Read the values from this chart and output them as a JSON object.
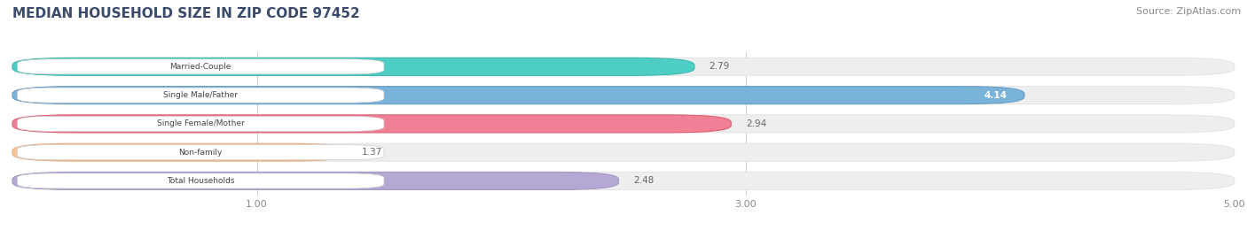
{
  "title": "MEDIAN HOUSEHOLD SIZE IN ZIP CODE 97452",
  "source": "Source: ZipAtlas.com",
  "categories": [
    "Married-Couple",
    "Single Male/Father",
    "Single Female/Mother",
    "Non-family",
    "Total Households"
  ],
  "values": [
    2.79,
    4.14,
    2.94,
    1.37,
    2.48
  ],
  "bar_colors": [
    "#4ecdc4",
    "#7ab3d9",
    "#f08096",
    "#f5c49a",
    "#b5a8d5"
  ],
  "bar_edge_colors": [
    "#3ab8ae",
    "#6a9ec3",
    "#e06070",
    "#e5b48a",
    "#a598c5"
  ],
  "xlim": [
    0,
    5.0
  ],
  "xticks": [
    1.0,
    3.0,
    5.0
  ],
  "background_color": "#ffffff",
  "bar_bg_color": "#eeeeee",
  "title_fontsize": 11,
  "source_fontsize": 8,
  "bar_height": 0.62
}
